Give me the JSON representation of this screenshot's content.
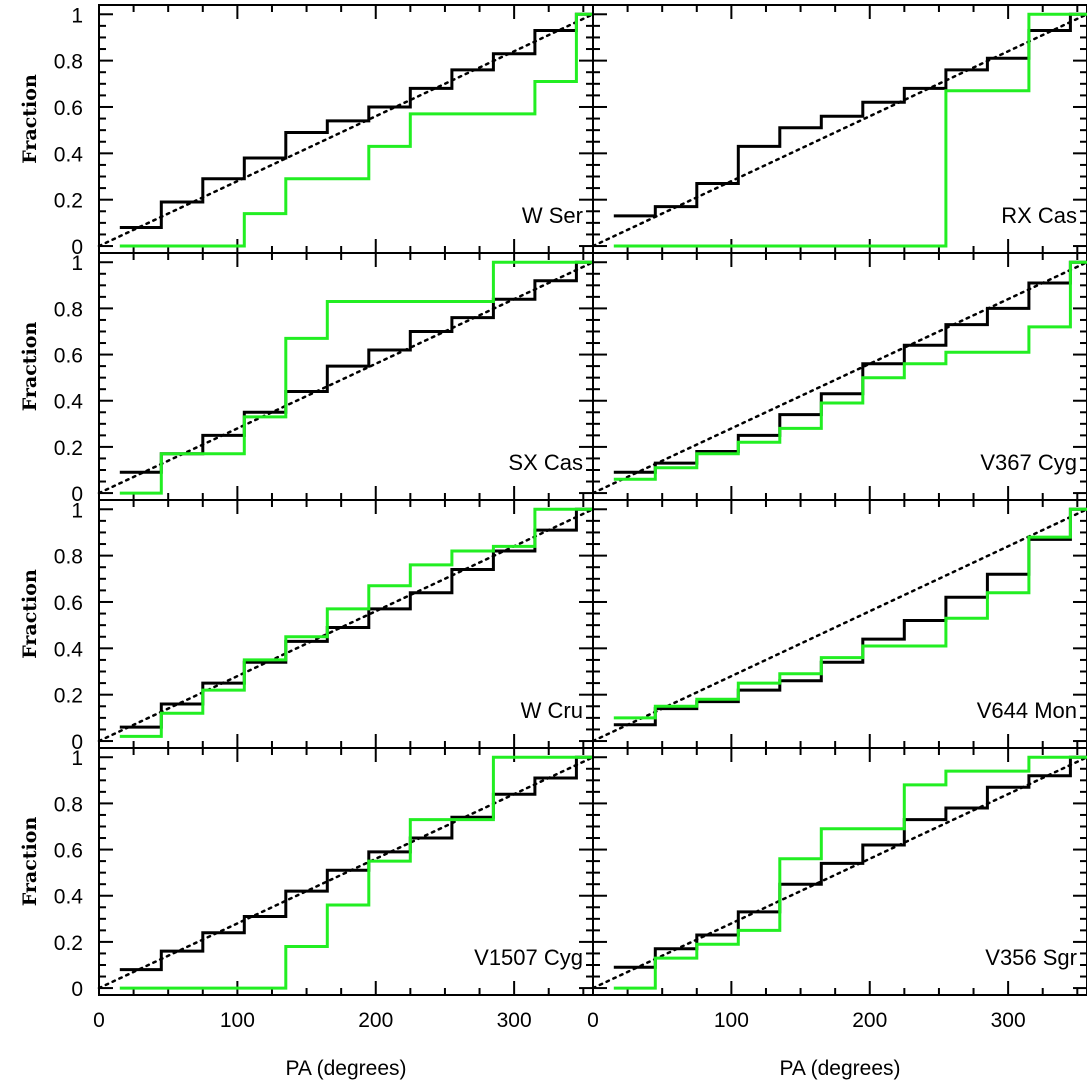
{
  "chart_data": {
    "type": "line",
    "layout": "4 rows x 2 columns, shared axes",
    "xlabel": "PA (degrees)",
    "ylabel": "Fraction",
    "xlim": [
      0,
      357
    ],
    "ylim": [
      -0.03,
      1.04
    ],
    "xticks": [
      0,
      100,
      200,
      300
    ],
    "yticks": [
      0,
      0.2,
      0.4,
      0.6,
      0.8,
      1
    ],
    "ytick_labels": [
      "0",
      "0.2",
      "0.4",
      "0.6",
      "0.8",
      "1"
    ],
    "grid": false,
    "colors": {
      "black_series": "#000000",
      "green_series": "#22ee22",
      "uniform_reference": "#000000"
    },
    "panels": [
      {
        "label": "W Ser",
        "black": {
          "x": [
            15,
            45,
            75,
            105,
            135,
            165,
            195,
            225,
            255,
            285,
            315,
            345
          ],
          "y": [
            0.08,
            0.19,
            0.29,
            0.38,
            0.49,
            0.54,
            0.6,
            0.68,
            0.76,
            0.83,
            0.93,
            1.0
          ]
        },
        "green": {
          "x": [
            15,
            45,
            75,
            105,
            135,
            165,
            195,
            225,
            255,
            285,
            315,
            345
          ],
          "y": [
            0.0,
            0.0,
            0.0,
            0.14,
            0.29,
            0.29,
            0.43,
            0.57,
            0.57,
            0.57,
            0.71,
            1.0
          ]
        }
      },
      {
        "label": "RX Cas",
        "black": {
          "x": [
            15,
            45,
            75,
            105,
            135,
            165,
            195,
            225,
            255,
            285,
            315,
            345
          ],
          "y": [
            0.13,
            0.17,
            0.27,
            0.43,
            0.51,
            0.56,
            0.62,
            0.68,
            0.76,
            0.81,
            0.93,
            1.0
          ]
        },
        "green": {
          "x": [
            15,
            45,
            75,
            105,
            135,
            165,
            195,
            225,
            255,
            285,
            315,
            345
          ],
          "y": [
            0.0,
            0.0,
            0.0,
            0.0,
            0.0,
            0.0,
            0.0,
            0.0,
            0.67,
            0.67,
            1.0,
            1.0
          ]
        }
      },
      {
        "label": "SX Cas",
        "black": {
          "x": [
            15,
            45,
            75,
            105,
            135,
            165,
            195,
            225,
            255,
            285,
            315,
            345
          ],
          "y": [
            0.09,
            0.17,
            0.25,
            0.35,
            0.44,
            0.55,
            0.62,
            0.7,
            0.76,
            0.84,
            0.92,
            1.0
          ]
        },
        "green": {
          "x": [
            15,
            45,
            75,
            105,
            135,
            165,
            195,
            225,
            255,
            285,
            315,
            345
          ],
          "y": [
            0.0,
            0.17,
            0.17,
            0.33,
            0.67,
            0.83,
            0.83,
            0.83,
            0.83,
            1.0,
            1.0,
            1.0
          ]
        }
      },
      {
        "label": "V367 Cyg",
        "black": {
          "x": [
            15,
            45,
            75,
            105,
            135,
            165,
            195,
            225,
            255,
            285,
            315,
            345
          ],
          "y": [
            0.09,
            0.13,
            0.18,
            0.25,
            0.34,
            0.43,
            0.56,
            0.64,
            0.73,
            0.8,
            0.91,
            1.0
          ]
        },
        "green": {
          "x": [
            15,
            45,
            75,
            105,
            135,
            165,
            195,
            225,
            255,
            285,
            315,
            345
          ],
          "y": [
            0.06,
            0.11,
            0.17,
            0.22,
            0.28,
            0.39,
            0.5,
            0.56,
            0.61,
            0.61,
            0.72,
            1.0
          ]
        }
      },
      {
        "label": "W Cru",
        "black": {
          "x": [
            15,
            45,
            75,
            105,
            135,
            165,
            195,
            225,
            255,
            285,
            315,
            345
          ],
          "y": [
            0.06,
            0.16,
            0.25,
            0.34,
            0.43,
            0.49,
            0.57,
            0.64,
            0.74,
            0.82,
            0.91,
            1.0
          ]
        },
        "green": {
          "x": [
            15,
            45,
            75,
            105,
            135,
            165,
            195,
            225,
            255,
            285,
            315,
            345
          ],
          "y": [
            0.02,
            0.12,
            0.22,
            0.35,
            0.45,
            0.57,
            0.67,
            0.76,
            0.82,
            0.84,
            1.0,
            1.0
          ]
        }
      },
      {
        "label": "V644 Mon",
        "black": {
          "x": [
            15,
            45,
            75,
            105,
            135,
            165,
            195,
            225,
            255,
            285,
            315,
            345
          ],
          "y": [
            0.07,
            0.14,
            0.17,
            0.22,
            0.26,
            0.34,
            0.44,
            0.52,
            0.62,
            0.72,
            0.87,
            1.0
          ]
        },
        "green": {
          "x": [
            15,
            45,
            75,
            105,
            135,
            165,
            195,
            225,
            255,
            285,
            315,
            345
          ],
          "y": [
            0.1,
            0.15,
            0.18,
            0.25,
            0.29,
            0.36,
            0.41,
            0.41,
            0.53,
            0.64,
            0.88,
            1.0
          ]
        }
      },
      {
        "label": "V1507 Cyg",
        "black": {
          "x": [
            15,
            45,
            75,
            105,
            135,
            165,
            195,
            225,
            255,
            285,
            315,
            345
          ],
          "y": [
            0.08,
            0.16,
            0.24,
            0.31,
            0.42,
            0.51,
            0.59,
            0.65,
            0.74,
            0.84,
            0.91,
            1.0
          ]
        },
        "green": {
          "x": [
            15,
            45,
            75,
            105,
            135,
            165,
            195,
            225,
            255,
            285,
            315,
            345
          ],
          "y": [
            0.0,
            0.0,
            0.0,
            0.0,
            0.18,
            0.36,
            0.55,
            0.73,
            0.73,
            1.0,
            1.0,
            1.0
          ]
        }
      },
      {
        "label": "V356 Sgr",
        "black": {
          "x": [
            15,
            45,
            75,
            105,
            135,
            165,
            195,
            225,
            255,
            285,
            315,
            345
          ],
          "y": [
            0.09,
            0.17,
            0.23,
            0.33,
            0.45,
            0.54,
            0.62,
            0.73,
            0.78,
            0.87,
            0.92,
            1.0
          ]
        },
        "green": {
          "x": [
            15,
            45,
            75,
            105,
            135,
            165,
            195,
            225,
            255,
            285,
            315,
            345
          ],
          "y": [
            0.0,
            0.13,
            0.19,
            0.25,
            0.56,
            0.69,
            0.69,
            0.88,
            0.94,
            0.94,
            1.0,
            1.0
          ]
        }
      }
    ]
  }
}
